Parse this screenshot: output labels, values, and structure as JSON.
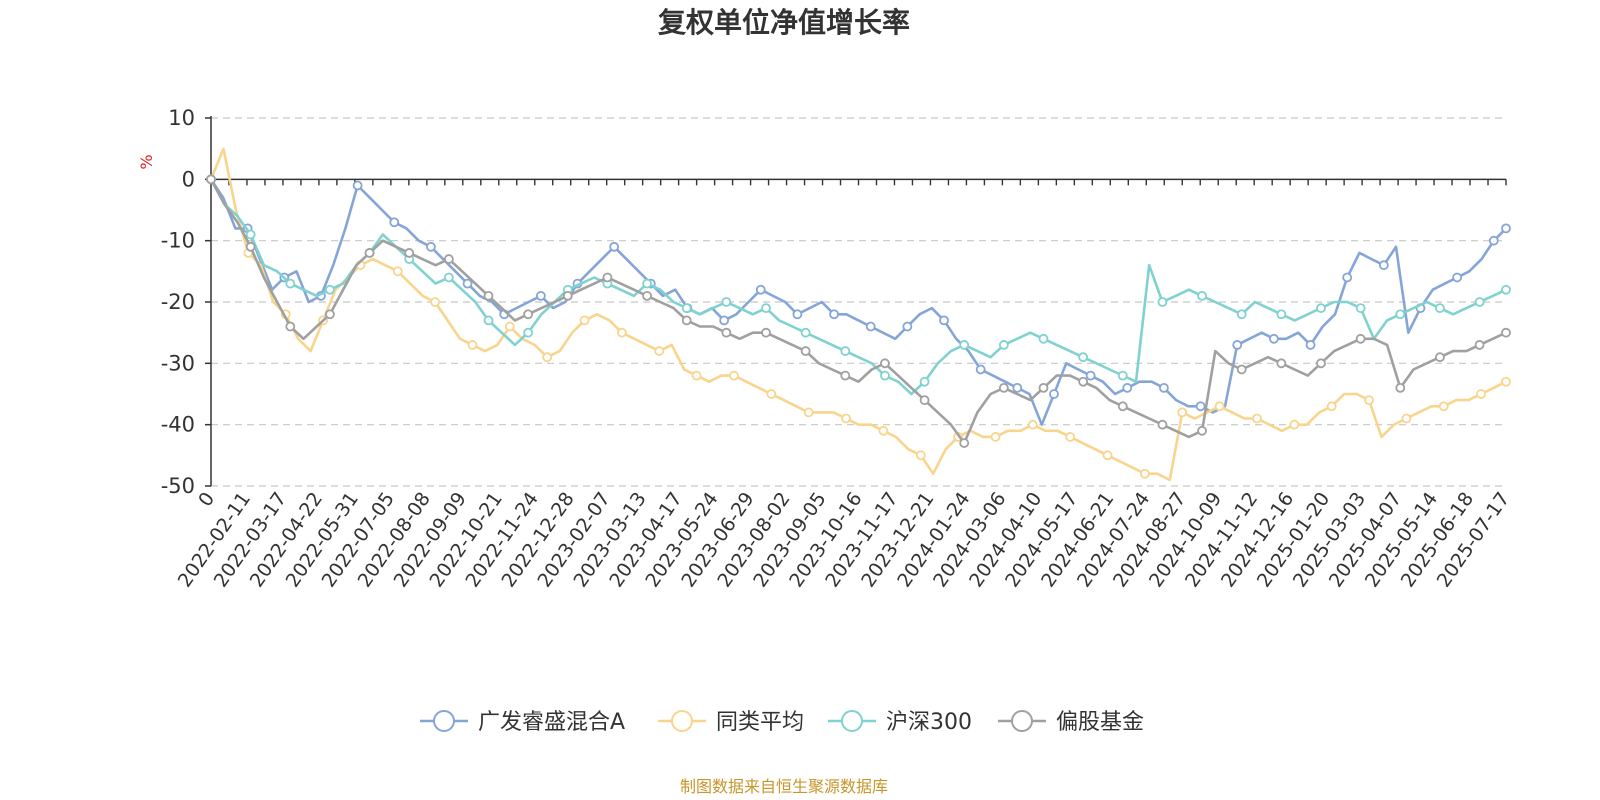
{
  "chart_data": {
    "type": "line",
    "title": "复权单位净值增长率",
    "ylabel": "%",
    "ylim": [
      -50,
      10
    ],
    "yticks": [
      10,
      0,
      -10,
      -20,
      -30,
      -40,
      -50
    ],
    "x_tick_labels": [
      "0",
      "2022-02-11",
      "2022-03-17",
      "2022-04-22",
      "2022-05-31",
      "2022-07-05",
      "2022-08-08",
      "2022-09-09",
      "2022-10-21",
      "2022-11-24",
      "2022-12-28",
      "2023-02-07",
      "2023-03-13",
      "2023-04-17",
      "2023-05-24",
      "2023-06-29",
      "2023-08-02",
      "2023-09-05",
      "2023-10-16",
      "2023-11-17",
      "2023-12-21",
      "2024-01-24",
      "2024-03-06",
      "2024-04-10",
      "2024-05-17",
      "2024-06-21",
      "2024-07-24",
      "2024-08-27",
      "2024-10-09",
      "2024-11-12",
      "2024-12-16",
      "2025-01-20",
      "2025-03-03",
      "2025-04-07",
      "2025-05-14",
      "2025-06-18",
      "2025-07-17"
    ],
    "grid": true,
    "legend_position": "bottom",
    "series": [
      {
        "name": "广发睿盛混合A",
        "color": "#85a5d8",
        "values": [
          0,
          -3,
          -8,
          -8,
          -13,
          -18,
          -16,
          -15,
          -20,
          -19,
          -14,
          -8,
          -1,
          -3,
          -5,
          -7,
          -8,
          -10,
          -11,
          -13,
          -15,
          -17,
          -19,
          -20,
          -22,
          -21,
          -20,
          -19,
          -21,
          -20,
          -17,
          -15,
          -13,
          -11,
          -13,
          -15,
          -17,
          -19,
          -18,
          -21,
          -22,
          -21,
          -23,
          -22,
          -20,
          -18,
          -19,
          -20,
          -22,
          -21,
          -20,
          -22,
          -22,
          -23,
          -24,
          -25,
          -26,
          -24,
          -22,
          -21,
          -23,
          -26,
          -28,
          -31,
          -32,
          -33,
          -34,
          -35,
          -40,
          -35,
          -30,
          -31,
          -32,
          -33,
          -35,
          -34,
          -33,
          -33,
          -34,
          -36,
          -37,
          -37,
          -38,
          -37,
          -27,
          -26,
          -25,
          -26,
          -26,
          -25,
          -27,
          -24,
          -22,
          -16,
          -12,
          -13,
          -14,
          -11,
          -25,
          -21,
          -18,
          -17,
          -16,
          -15,
          -13,
          -10,
          -8
        ]
      },
      {
        "name": "同类平均",
        "color": "#f9d48d",
        "values": [
          0,
          5,
          -5,
          -12,
          -14,
          -20,
          -22,
          -26,
          -28,
          -23,
          -18,
          -16,
          -14,
          -13,
          -14,
          -15,
          -17,
          -19,
          -20,
          -23,
          -26,
          -27,
          -28,
          -27,
          -24,
          -26,
          -27,
          -29,
          -28,
          -25,
          -23,
          -22,
          -23,
          -25,
          -26,
          -27,
          -28,
          -27,
          -31,
          -32,
          -33,
          -32,
          -32,
          -33,
          -34,
          -35,
          -36,
          -37,
          -38,
          -38,
          -38,
          -39,
          -40,
          -40,
          -41,
          -42,
          -44,
          -45,
          -48,
          -44,
          -42,
          -41,
          -42,
          -42,
          -41,
          -41,
          -40,
          -41,
          -41,
          -42,
          -43,
          -44,
          -45,
          -46,
          -47,
          -48,
          -48,
          -49,
          -38,
          -39,
          -38,
          -37,
          -38,
          -39,
          -39,
          -40,
          -41,
          -40,
          -40,
          -38,
          -37,
          -35,
          -35,
          -36,
          -42,
          -40,
          -39,
          -38,
          -37,
          -37,
          -36,
          -36,
          -35,
          -34,
          -33
        ]
      },
      {
        "name": "沪深300",
        "color": "#7fd2cf",
        "values": [
          0,
          -4,
          -6,
          -9,
          -14,
          -15,
          -17,
          -18,
          -19,
          -18,
          -17,
          -14,
          -12,
          -9,
          -11,
          -13,
          -15,
          -17,
          -16,
          -18,
          -20,
          -23,
          -25,
          -27,
          -25,
          -22,
          -20,
          -18,
          -17,
          -16,
          -17,
          -18,
          -19,
          -17,
          -18,
          -20,
          -21,
          -22,
          -21,
          -20,
          -21,
          -22,
          -21,
          -23,
          -24,
          -25,
          -26,
          -27,
          -28,
          -29,
          -30,
          -32,
          -33,
          -35,
          -33,
          -30,
          -28,
          -27,
          -28,
          -29,
          -27,
          -26,
          -25,
          -26,
          -27,
          -28,
          -29,
          -30,
          -31,
          -32,
          -33,
          -14,
          -20,
          -19,
          -18,
          -19,
          -20,
          -21,
          -22,
          -20,
          -21,
          -22,
          -23,
          -22,
          -21,
          -20,
          -20,
          -21,
          -26,
          -23,
          -22,
          -21,
          -20,
          -21,
          -22,
          -21,
          -20,
          -19,
          -18
        ]
      },
      {
        "name": "偏股基金",
        "color": "#a0a0a0",
        "values": [
          0,
          -4,
          -7,
          -11,
          -16,
          -20,
          -24,
          -26,
          -24,
          -22,
          -18,
          -14,
          -12,
          -10,
          -11,
          -12,
          -13,
          -14,
          -13,
          -15,
          -17,
          -19,
          -21,
          -23,
          -22,
          -21,
          -20,
          -19,
          -18,
          -17,
          -16,
          -17,
          -18,
          -19,
          -20,
          -21,
          -23,
          -24,
          -24,
          -25,
          -26,
          -25,
          -25,
          -26,
          -27,
          -28,
          -30,
          -31,
          -32,
          -33,
          -31,
          -30,
          -32,
          -34,
          -36,
          -38,
          -40,
          -43,
          -38,
          -35,
          -34,
          -35,
          -36,
          -34,
          -32,
          -32,
          -33,
          -34,
          -36,
          -37,
          -38,
          -39,
          -40,
          -41,
          -42,
          -41,
          -28,
          -30,
          -31,
          -30,
          -29,
          -30,
          -31,
          -32,
          -30,
          -28,
          -27,
          -26,
          -26,
          -27,
          -34,
          -31,
          -30,
          -29,
          -28,
          -28,
          -27,
          -26,
          -25
        ]
      }
    ]
  },
  "source_note": "制图数据来自恒生聚源数据库"
}
